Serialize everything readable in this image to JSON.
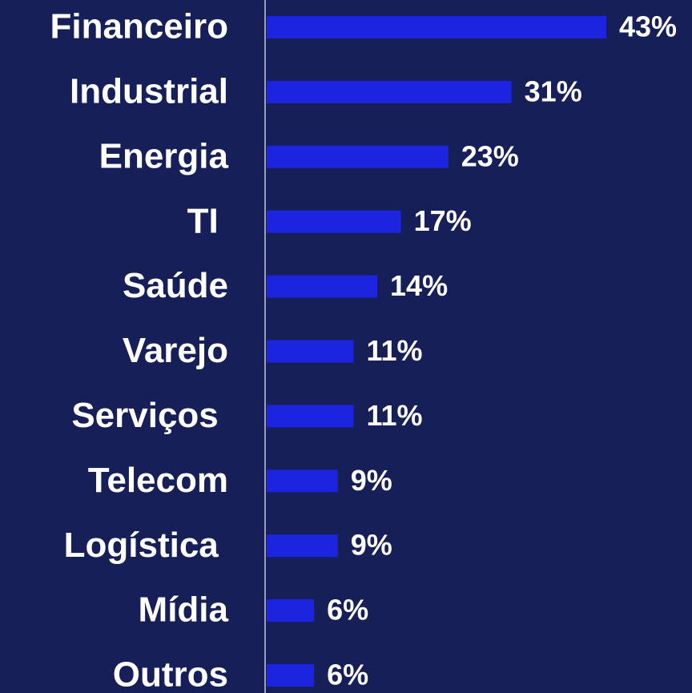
{
  "chart_data": {
    "type": "bar",
    "orientation": "horizontal",
    "categories": [
      "Financeiro",
      "Industrial",
      "Energia",
      "TI ",
      "Saúde",
      "Varejo",
      "Serviços ",
      "Telecom",
      "Logística ",
      "Mídia",
      "Outros"
    ],
    "values": [
      43,
      31,
      23,
      17,
      14,
      11,
      11,
      9,
      9,
      6,
      6
    ],
    "value_labels": [
      "43%",
      "31%",
      "23%",
      "17%",
      "14%",
      "11%",
      "11%",
      "9%",
      "9%",
      "6%",
      "6%"
    ],
    "color": "#1c24e0"
  }
}
